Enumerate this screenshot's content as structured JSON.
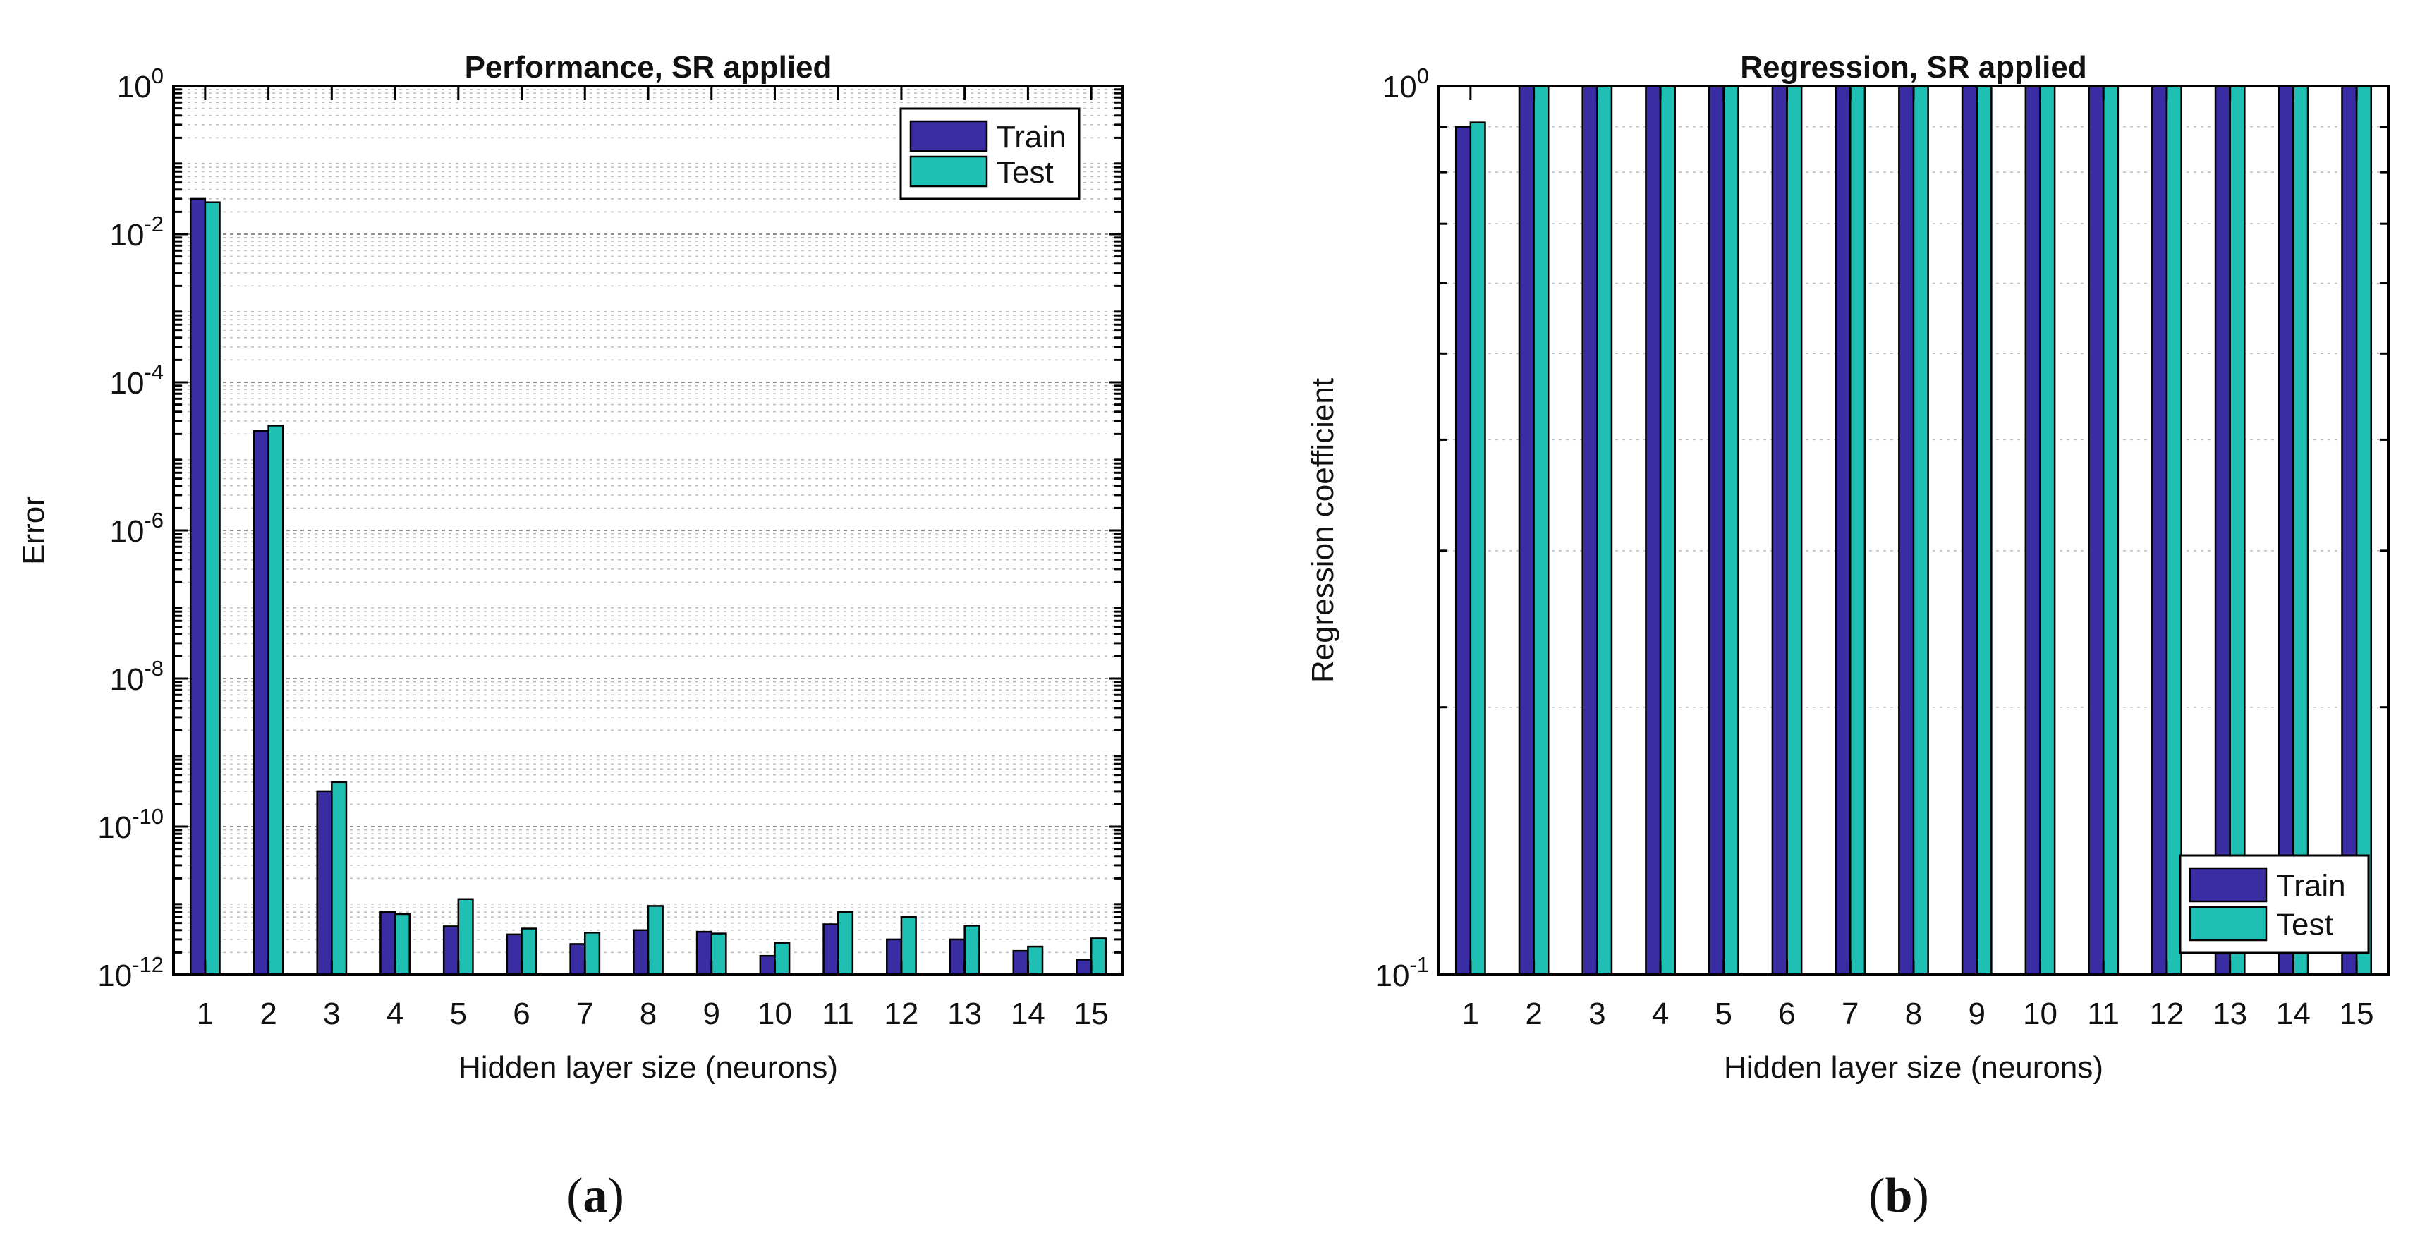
{
  "colors": {
    "train": "#3a2da3",
    "test": "#1fbfb3"
  },
  "chart_data": [
    {
      "id": "a",
      "type": "bar",
      "yscale": "log",
      "title": "Performance, SR applied",
      "xlabel": "Hidden layer size (neurons)",
      "ylabel": "Error",
      "ylim": [
        1e-12,
        1
      ],
      "grid": true,
      "legend_position": "top-right",
      "categories": [
        "1",
        "2",
        "3",
        "4",
        "5",
        "6",
        "7",
        "8",
        "9",
        "10",
        "11",
        "12",
        "13",
        "14",
        "15"
      ],
      "series": [
        {
          "name": "Train",
          "values": [
            0.03,
            2.2e-05,
            3e-10,
            7e-12,
            4.5e-12,
            3.5e-12,
            2.6e-12,
            4e-12,
            3.8e-12,
            1.8e-12,
            4.8e-12,
            3e-12,
            3e-12,
            2.1e-12,
            1.6e-12
          ]
        },
        {
          "name": "Test",
          "values": [
            0.027,
            2.6e-05,
            4e-10,
            6.6e-12,
            1.05e-11,
            4.2e-12,
            3.7e-12,
            8.5e-12,
            3.6e-12,
            2.7e-12,
            7e-12,
            6e-12,
            4.6e-12,
            2.4e-12,
            3.1e-12
          ]
        }
      ],
      "yticks": [
        {
          "value": 1,
          "base": "10",
          "exp": "0"
        },
        {
          "value": 0.01,
          "base": "10",
          "exp": "-2"
        },
        {
          "value": 0.0001,
          "base": "10",
          "exp": "-4"
        },
        {
          "value": 1e-06,
          "base": "10",
          "exp": "-6"
        },
        {
          "value": 1e-08,
          "base": "10",
          "exp": "-8"
        },
        {
          "value": 1e-10,
          "base": "10",
          "exp": "-10"
        },
        {
          "value": 1e-12,
          "base": "10",
          "exp": "-12"
        }
      ],
      "caption": "a"
    },
    {
      "id": "b",
      "type": "bar",
      "yscale": "log",
      "title": "Regression, SR applied",
      "xlabel": "Hidden layer size (neurons)",
      "ylabel": "Regression coefficient",
      "ylim": [
        0.1,
        1
      ],
      "grid": true,
      "legend_position": "bottom-right",
      "categories": [
        "1",
        "2",
        "3",
        "4",
        "5",
        "6",
        "7",
        "8",
        "9",
        "10",
        "11",
        "12",
        "13",
        "14",
        "15"
      ],
      "series": [
        {
          "name": "Train",
          "values": [
            0.9,
            1,
            1,
            1,
            1,
            1,
            1,
            1,
            1,
            1,
            1,
            1,
            1,
            1,
            1
          ]
        },
        {
          "name": "Test",
          "values": [
            0.91,
            1,
            1,
            1,
            1,
            1,
            1,
            1,
            1,
            1,
            1,
            1,
            1,
            1,
            1
          ]
        }
      ],
      "yticks": [
        {
          "value": 1,
          "base": "10",
          "exp": "0"
        },
        {
          "value": 0.1,
          "base": "10",
          "exp": "-1"
        }
      ],
      "caption": "b"
    }
  ]
}
